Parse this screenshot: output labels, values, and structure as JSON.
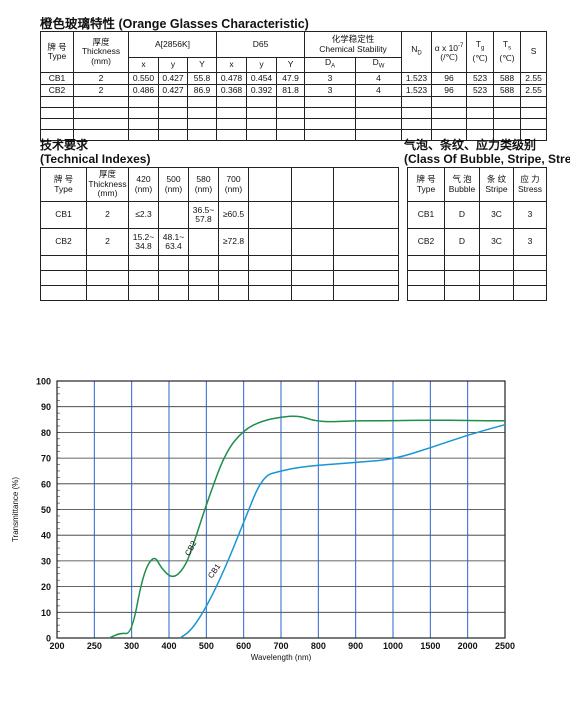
{
  "title": "橙色玻璃特性 (Orange Glasses Characteristic)",
  "char_table": {
    "h_brand_cn": "牌 号",
    "h_brand_en": "Type",
    "h_thick_cn": "厚度",
    "h_thick_en": "Thickness",
    "h_thick_unit": "(mm)",
    "h_a2856": "A[2856K]",
    "h_d65": "D65",
    "h_chem_cn": "化学稳定性",
    "h_chem_en": "Chemical Stability",
    "h_nd": "N",
    "h_nd_sub": "D",
    "h_alpha": "α x 10",
    "h_alpha_sup": "-7",
    "h_alpha_unit": "(/℃)",
    "h_tg": "T",
    "h_tg_sub": "g",
    "h_tg_unit": "(℃)",
    "h_ts": "T",
    "h_ts_sub": "s",
    "h_ts_unit": "(℃)",
    "h_s": "S",
    "h_x": "x",
    "h_y": "y",
    "h_Y": "Y",
    "h_x2": "x",
    "h_y2": "y",
    "h_Y2": "Y",
    "h_da": "D",
    "h_da_sub": "A",
    "h_dw": "D",
    "h_dw_sub": "W",
    "rows": [
      [
        "CB1",
        "2",
        "0.550",
        "0.427",
        "55.8",
        "0.478",
        "0.454",
        "47.9",
        "3",
        "4",
        "1.523",
        "96",
        "523",
        "588",
        "2.55"
      ],
      [
        "CB2",
        "2",
        "0.486",
        "0.427",
        "86.9",
        "0.368",
        "0.392",
        "81.8",
        "3",
        "4",
        "1.523",
        "96",
        "523",
        "588",
        "2.55"
      ]
    ]
  },
  "tech_title_cn": "技术要求",
  "tech_title_en": "(Technical Indexes)",
  "tech_table": {
    "h_brand_cn": "牌 号",
    "h_brand_en": "Type",
    "h_thick_cn": "厚度",
    "h_thick_en": "Thickness",
    "h_thick_unit": "(mm)",
    "h_420": "420",
    "h_500": "500",
    "h_580": "580",
    "h_700": "700",
    "h_nm": "(nm)",
    "rows": [
      [
        "CB1",
        "2",
        "≤2.3",
        "",
        "36.5~\n57.8",
        "≥60.5"
      ],
      [
        "CB2",
        "2",
        "15.2~\n34.8",
        "48.1~\n63.4",
        "",
        "≥72.8"
      ]
    ]
  },
  "bubble_title_cn": "气泡、条纹、应力类级别",
  "bubble_title_en": "(Class Of Bubble, Stripe, Stress)",
  "bubble_table": {
    "h_brand_cn": "牌 号",
    "h_brand_en": "Type",
    "h_bubble_cn": "气 泡",
    "h_bubble_en": "Bubble",
    "h_stripe_cn": "条 纹",
    "h_stripe_en": "Stripe",
    "h_stress_cn": "应 力",
    "h_stress_en": "Stress",
    "rows": [
      [
        "CB1",
        "D",
        "3C",
        "3"
      ],
      [
        "CB2",
        "D",
        "3C",
        "3"
      ]
    ]
  },
  "chart_data": {
    "type": "line",
    "xlabel": "Wavelength (nm)",
    "ylabel": "Transmittance (%)",
    "x_ticks": [
      "200",
      "250",
      "300",
      "400",
      "500",
      "600",
      "700",
      "800",
      "900",
      "1000",
      "1500",
      "2000",
      "2500"
    ],
    "y_ticks": [
      "0",
      "10",
      "20",
      "30",
      "40",
      "50",
      "60",
      "70",
      "80",
      "90",
      "100"
    ],
    "ylim": [
      0,
      100
    ],
    "grid": true,
    "series": [
      {
        "name": "CB2",
        "color": "#1e8f4a",
        "points": [
          [
            270,
            0
          ],
          [
            285,
            2
          ],
          [
            300,
            1.5
          ],
          [
            330,
            25
          ],
          [
            360,
            32.5
          ],
          [
            380,
            27
          ],
          [
            410,
            23
          ],
          [
            440,
            27
          ],
          [
            460,
            34
          ],
          [
            500,
            52
          ],
          [
            550,
            72
          ],
          [
            600,
            81
          ],
          [
            650,
            84.5
          ],
          [
            700,
            86
          ],
          [
            750,
            86.5
          ],
          [
            800,
            84
          ],
          [
            900,
            84.5
          ],
          [
            1000,
            84.5
          ],
          [
            1500,
            84.8
          ],
          [
            2000,
            84.6
          ],
          [
            2500,
            84.5
          ]
        ]
      },
      {
        "name": "CB1",
        "color": "#1a95d4",
        "points": [
          [
            430,
            0
          ],
          [
            460,
            3
          ],
          [
            500,
            12
          ],
          [
            550,
            27
          ],
          [
            600,
            45
          ],
          [
            650,
            63
          ],
          [
            700,
            65
          ],
          [
            750,
            66.5
          ],
          [
            800,
            67.2
          ],
          [
            900,
            68.3
          ],
          [
            1000,
            69.5
          ],
          [
            1500,
            74
          ],
          [
            2000,
            79
          ],
          [
            2500,
            83
          ]
        ]
      }
    ]
  }
}
